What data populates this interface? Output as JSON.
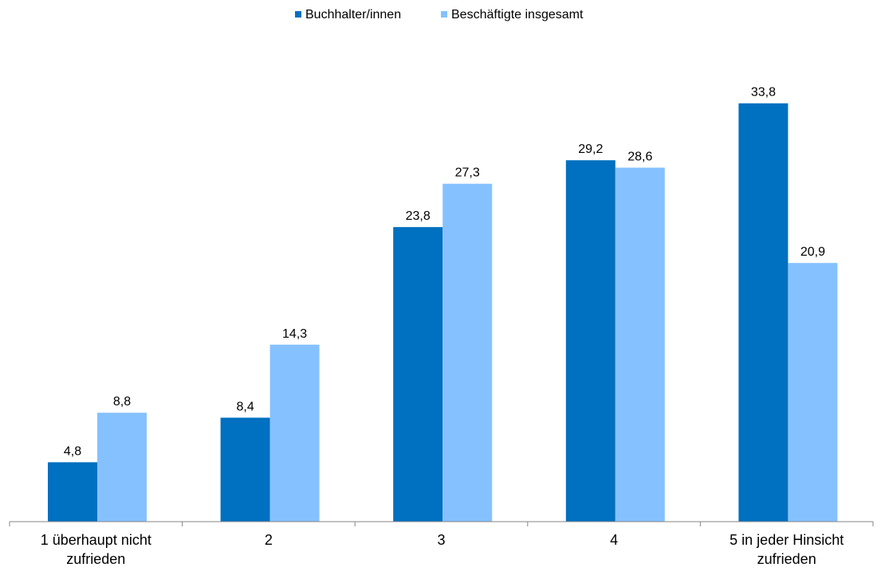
{
  "chart_data": {
    "type": "bar",
    "title": "",
    "xlabel": "",
    "ylabel": "",
    "ylim": [
      0,
      37
    ],
    "grid": false,
    "legend_position": "top-center",
    "categories": [
      [
        "1 überhaupt nicht",
        "zufrieden"
      ],
      [
        "2"
      ],
      [
        "3"
      ],
      [
        "4"
      ],
      [
        "5 in jeder Hinsicht",
        "zufrieden"
      ]
    ],
    "series": [
      {
        "name": "Buchhalter/innen",
        "color": "#0070C0",
        "values": [
          4.8,
          8.4,
          23.8,
          29.2,
          33.8
        ],
        "labels": [
          "4,8",
          "8,4",
          "23,8",
          "29,2",
          "33,8"
        ]
      },
      {
        "name": "Beschäftigte insgesamt",
        "color": "#85C1FF",
        "values": [
          8.8,
          14.3,
          27.3,
          28.6,
          20.9
        ],
        "labels": [
          "8,8",
          "14,3",
          "27,3",
          "28,6",
          "20,9"
        ]
      }
    ]
  }
}
